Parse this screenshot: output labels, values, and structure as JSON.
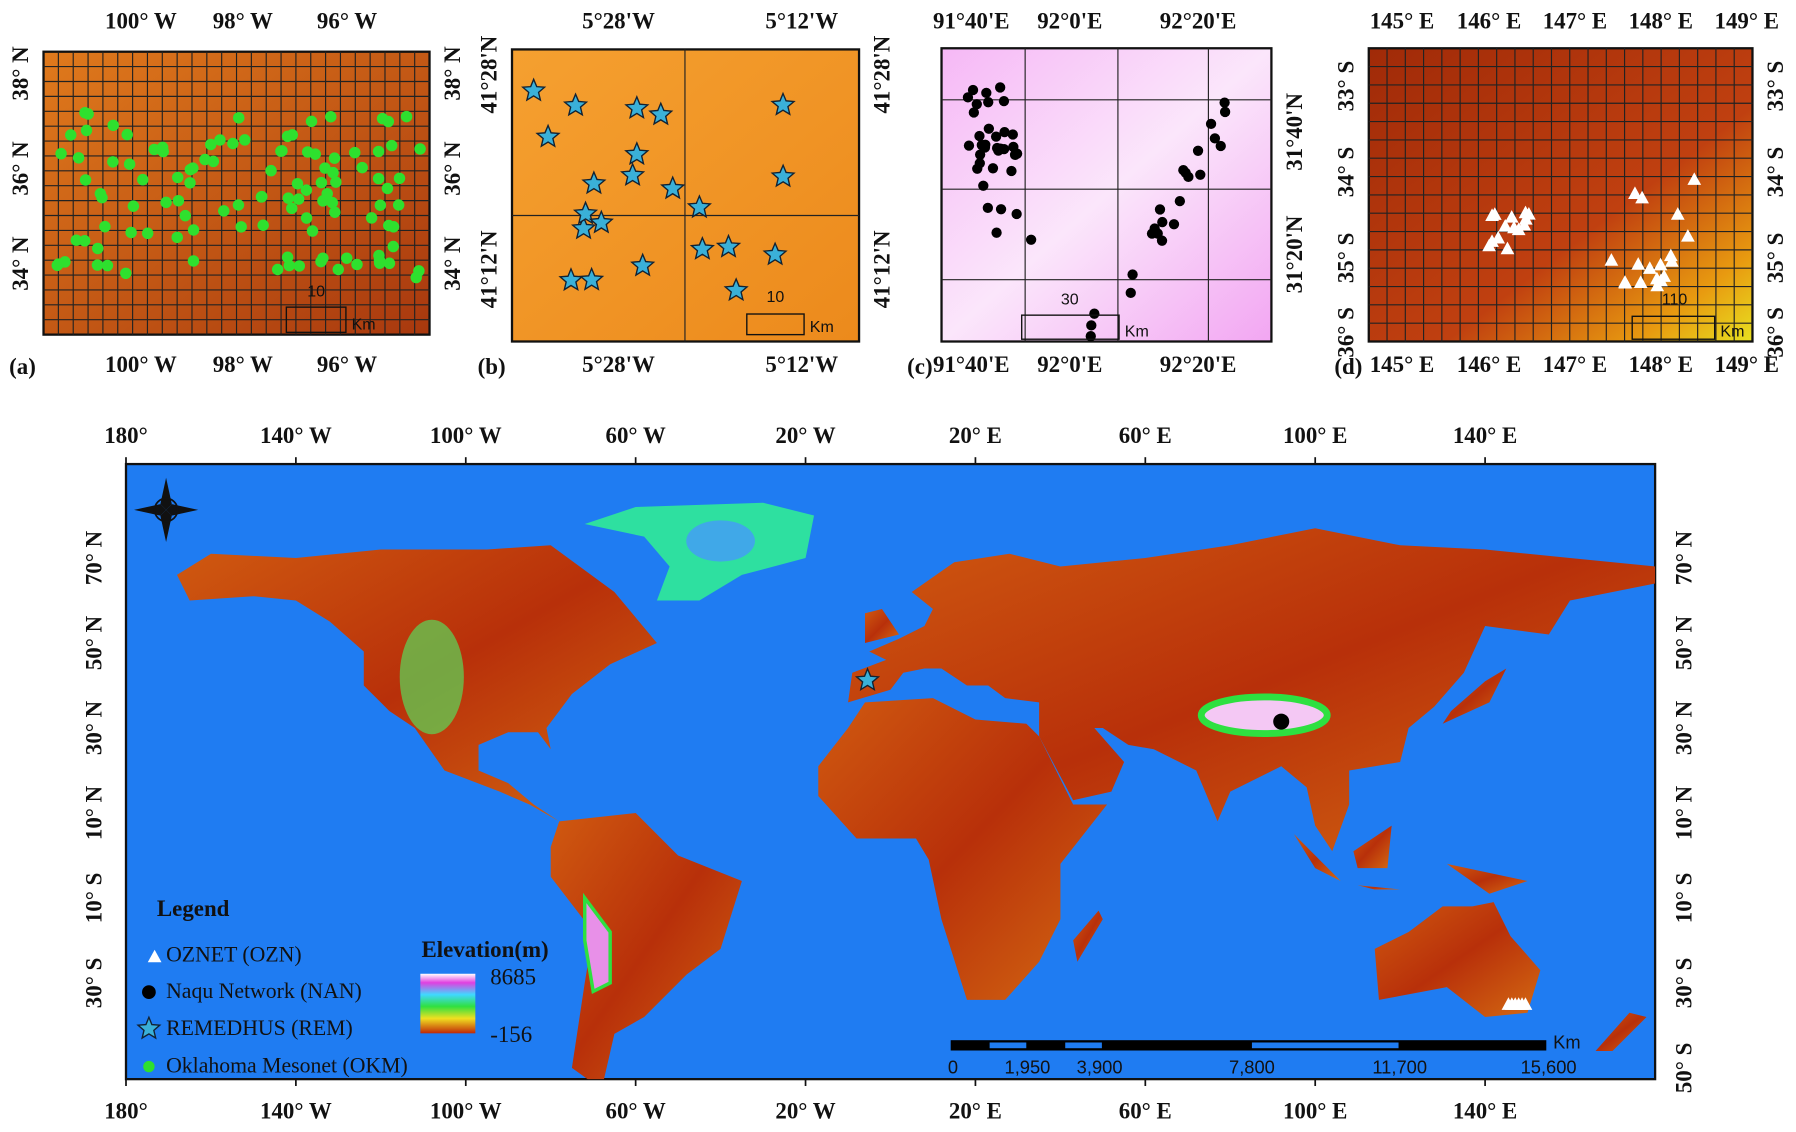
{
  "panels": [
    {
      "label": "(a)",
      "top": [
        "100° W",
        "98° W",
        "96° W"
      ],
      "bottom": [
        "100° W",
        "98° W",
        "96° W"
      ],
      "left": [
        "38° N",
        "36° N",
        "34° N"
      ],
      "right": [
        "38° N",
        "36° N",
        "34° N"
      ],
      "scale": "10",
      "unit": "Km"
    },
    {
      "label": "(b)",
      "top": [
        "5°28'W",
        "5°12'W"
      ],
      "bottom": [
        "5°28'W",
        "5°12'W"
      ],
      "left": [
        "41°28'N",
        "41°12'N"
      ],
      "right": [
        "41°28'N",
        "41°12'N"
      ],
      "scale": "10",
      "unit": "Km"
    },
    {
      "label": "(c)",
      "top": [
        "91°40'E",
        "92°0'E",
        "92°20'E"
      ],
      "bottom": [
        "91°40'E",
        "92°0'E",
        "92°20'E"
      ],
      "right": [
        "31°40'N",
        "31°20'N"
      ],
      "scale": "30",
      "unit": "Km"
    },
    {
      "label": "(d)",
      "top": [
        "145° E",
        "146° E",
        "147° E",
        "148° E",
        "149° E"
      ],
      "bottom": [
        "145° E",
        "146° E",
        "147° E",
        "148° E",
        "149° E"
      ],
      "left": [
        "33° S",
        "34° S",
        "35° S",
        "36° S"
      ],
      "right": [
        "33° S",
        "34° S",
        "35° S",
        "36° S"
      ],
      "scale": "110",
      "unit": "Km"
    }
  ],
  "world": {
    "top": [
      "180°",
      "140° W",
      "100° W",
      "60° W",
      "20° W",
      "20° E",
      "60° E",
      "100° E",
      "140° E"
    ],
    "bottom": [
      "180°",
      "140° W",
      "100° W",
      "60° W",
      "20° W",
      "20° E",
      "60° E",
      "100° E",
      "140° E"
    ],
    "left": [
      "70° N",
      "50° N",
      "30° N",
      "10° N",
      "10° S",
      "30° S"
    ],
    "right": [
      "70° N",
      "50° N",
      "30° N",
      "10° N",
      "10° S",
      "30° S",
      "50° S"
    ],
    "legend": {
      "title": "Legend",
      "items": [
        "OZNET (OZN)",
        "Naqu Network (NAN)",
        "REMEDHUS (REM)",
        "Oklahoma Mesonet (OKM)"
      ]
    },
    "elevation": {
      "title": "Elevation(m)",
      "max": 8685,
      "min": -156
    },
    "scale_bar": {
      "unit": "Km",
      "labels": [
        "0",
        "1,950",
        "3,900",
        "7,800",
        "11,700",
        "15,600"
      ]
    }
  }
}
